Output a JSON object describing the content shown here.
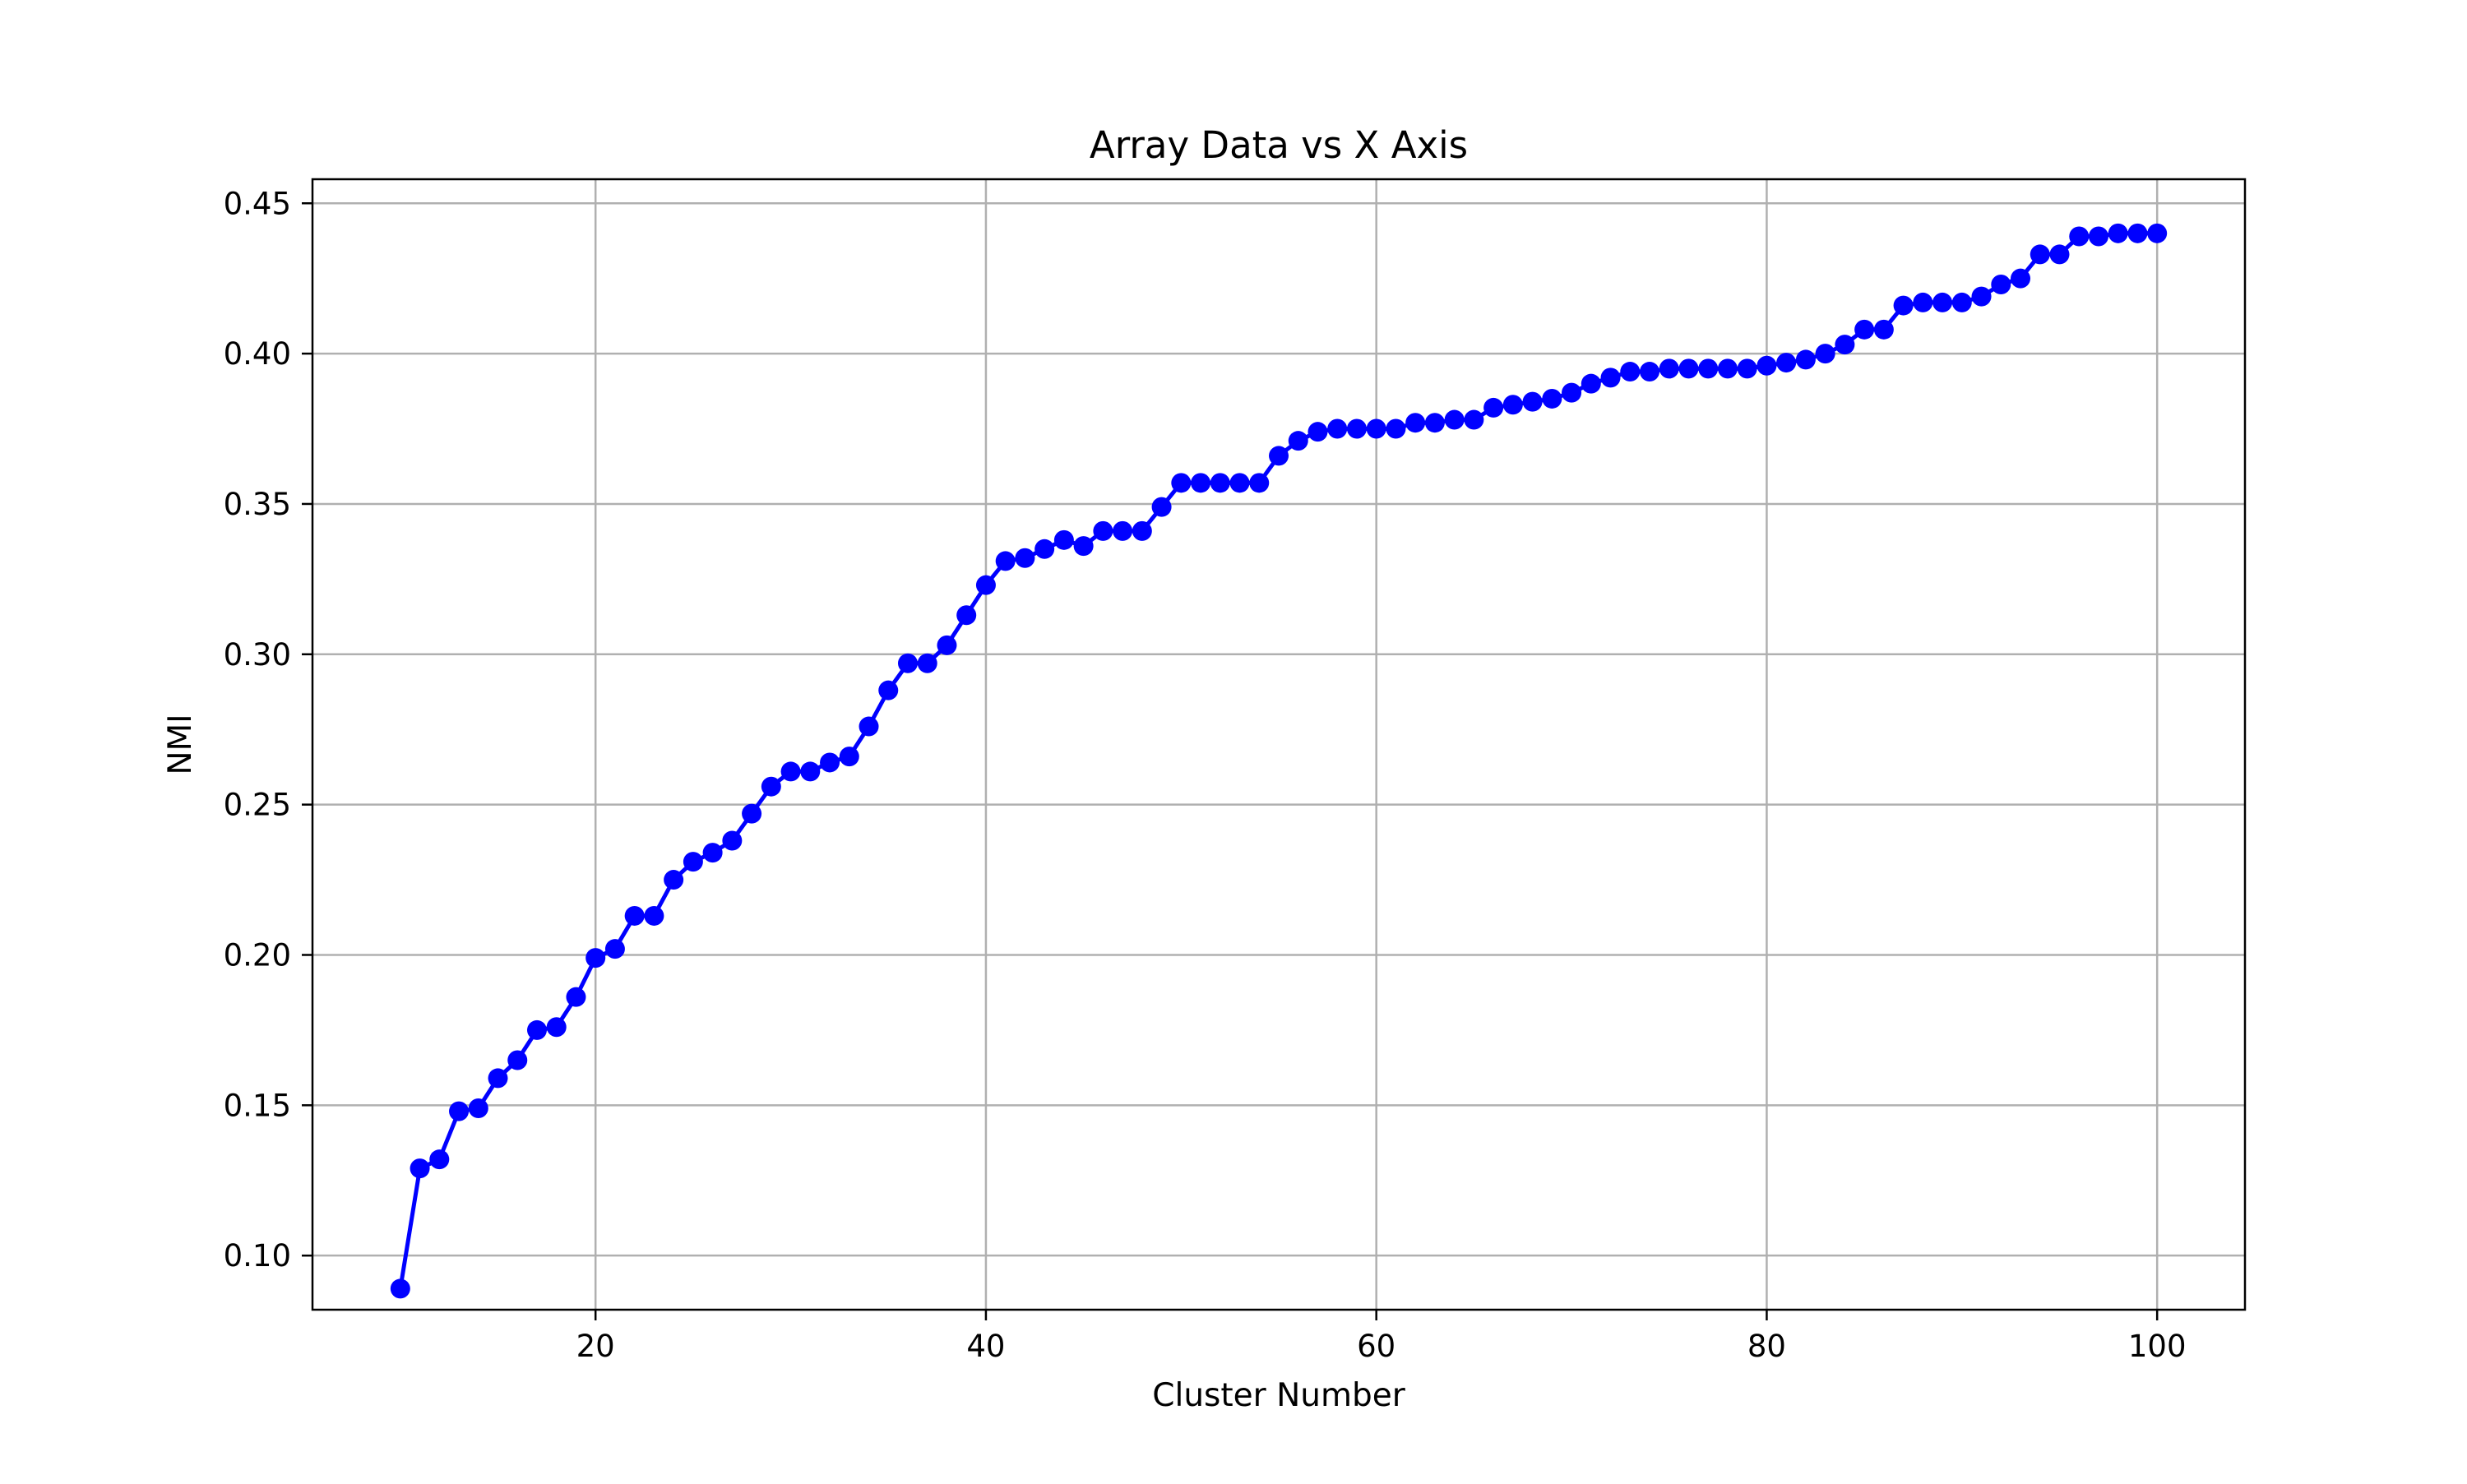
{
  "chart_data": {
    "type": "line",
    "title": "Array Data vs X Axis",
    "xlabel": "Cluster Number",
    "ylabel": "NMI",
    "xlim": [
      5.5,
      104.5
    ],
    "ylim": [
      0.082,
      0.458
    ],
    "xticks": [
      20,
      40,
      60,
      80,
      100
    ],
    "xtick_labels": [
      "20",
      "40",
      "60",
      "80",
      "100"
    ],
    "yticks": [
      0.1,
      0.15,
      0.2,
      0.25,
      0.3,
      0.35,
      0.4,
      0.45
    ],
    "ytick_labels": [
      "0.10",
      "0.15",
      "0.20",
      "0.25",
      "0.30",
      "0.35",
      "0.40",
      "0.45"
    ],
    "grid": true,
    "legend": "none",
    "color": "#0000ff",
    "marker": "circle",
    "series": [
      {
        "x": [
          10,
          11,
          12,
          13,
          14,
          15,
          16,
          17,
          18,
          19,
          20,
          21,
          22,
          23,
          24,
          25,
          26,
          27,
          28,
          29,
          30,
          31,
          32,
          33,
          34,
          35,
          36,
          37,
          38,
          39,
          40,
          41,
          42,
          43,
          44,
          45,
          46,
          47,
          48,
          49,
          50,
          51,
          52,
          53,
          54,
          55,
          56,
          57,
          58,
          59,
          60,
          61,
          62,
          63,
          64,
          65,
          66,
          67,
          68,
          69,
          70,
          71,
          72,
          73,
          74,
          75,
          76,
          77,
          78,
          79,
          80,
          81,
          82,
          83,
          84,
          85,
          86,
          87,
          88,
          89,
          90,
          91,
          92,
          93,
          94,
          95,
          96,
          97,
          98,
          99,
          100
        ],
        "values": [
          0.089,
          0.129,
          0.132,
          0.148,
          0.149,
          0.159,
          0.165,
          0.175,
          0.176,
          0.186,
          0.199,
          0.202,
          0.213,
          0.213,
          0.225,
          0.231,
          0.234,
          0.238,
          0.247,
          0.256,
          0.261,
          0.261,
          0.264,
          0.266,
          0.276,
          0.288,
          0.297,
          0.297,
          0.303,
          0.313,
          0.323,
          0.331,
          0.332,
          0.335,
          0.338,
          0.336,
          0.341,
          0.341,
          0.341,
          0.349,
          0.357,
          0.357,
          0.357,
          0.357,
          0.357,
          0.366,
          0.371,
          0.374,
          0.375,
          0.375,
          0.375,
          0.375,
          0.377,
          0.377,
          0.378,
          0.378,
          0.382,
          0.383,
          0.384,
          0.385,
          0.387,
          0.39,
          0.392,
          0.394,
          0.394,
          0.395,
          0.395,
          0.395,
          0.395,
          0.395,
          0.396,
          0.397,
          0.398,
          0.4,
          0.403,
          0.408,
          0.408,
          0.416,
          0.417,
          0.417,
          0.417,
          0.419,
          0.423,
          0.425,
          0.433,
          0.433,
          0.439,
          0.439,
          0.44,
          0.44,
          0.44
        ]
      }
    ]
  }
}
